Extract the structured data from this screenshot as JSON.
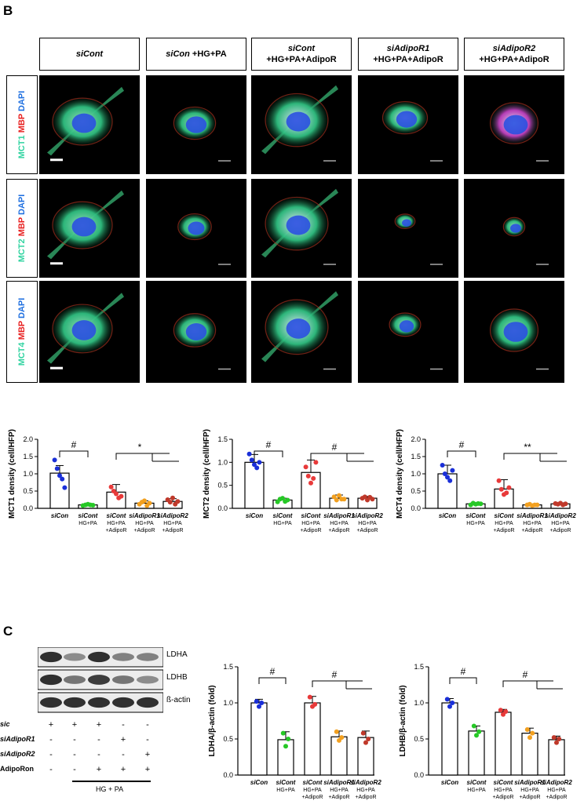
{
  "panels": {
    "b": "B",
    "c": "C"
  },
  "micrograph_headers": [
    {
      "line1_italic": "siCont",
      "line1_plain": "",
      "line2": ""
    },
    {
      "line1_italic": "siCon",
      "line1_plain": "+HG+PA",
      "line2": ""
    },
    {
      "line1_italic": "siCont",
      "line1_plain": "",
      "line2": "+HG+PA+AdipoR"
    },
    {
      "line1_italic": "siAdipoR1",
      "line1_plain": "",
      "line2": "+HG+PA+AdipoR"
    },
    {
      "line1_italic": "siAdipoR2",
      "line1_plain": "",
      "line2": "+HG+PA+AdipoR"
    }
  ],
  "micrograph_rows": [
    {
      "marker": "MCT1",
      "mbp": "MBP",
      "dapi": "DAPI"
    },
    {
      "marker": "MCT2",
      "mbp": "MBP",
      "dapi": "DAPI"
    },
    {
      "marker": "MCT4",
      "mbp": "MBP",
      "dapi": "DAPI"
    }
  ],
  "colors": {
    "green": "#2fd3a0",
    "red": "#e82020",
    "blue": "#2070e0",
    "dot_blue": "#1a2fd8",
    "dot_green": "#26c826",
    "dot_red": "#e83a3a",
    "dot_orange": "#f2a020",
    "dot_darkred": "#c0392b"
  },
  "chart_data": [
    {
      "type": "bar",
      "ylabel": "MCT1 density (cell/HFP)",
      "ylim": [
        0,
        2.0
      ],
      "yticks": [
        "0.0",
        "0.5",
        "1.0",
        "1.5",
        "2.0"
      ],
      "categories": [
        [
          "siCon"
        ],
        [
          "siCont",
          "HG+PA"
        ],
        [
          "siCont",
          "HG+PA",
          "+AdipoR"
        ],
        [
          "siAdipoR1",
          "HG+PA",
          "+AdipoR"
        ],
        [
          "siAdipoR2",
          "HG+PA",
          "+AdipoR"
        ]
      ],
      "values": [
        1.02,
        0.1,
        0.47,
        0.15,
        0.2
      ],
      "errors": [
        0.22,
        0.03,
        0.22,
        0.07,
        0.08
      ],
      "points": [
        [
          1.4,
          1.15,
          0.95,
          0.85,
          0.6
        ],
        [
          0.08,
          0.1,
          0.12,
          0.1,
          0.09
        ],
        [
          0.62,
          0.5,
          0.42,
          0.3,
          0.35
        ],
        [
          0.12,
          0.18,
          0.22,
          0.08,
          0.15
        ],
        [
          0.25,
          0.18,
          0.3,
          0.12,
          0.2
        ]
      ],
      "significance": [
        "#",
        "*"
      ]
    },
    {
      "type": "bar",
      "ylabel": "MCT2 density (cell/HFP)",
      "ylim": [
        0,
        1.5
      ],
      "yticks": [
        "0.0",
        "0.5",
        "1.0",
        "1.5"
      ],
      "categories": [
        [
          "siCon"
        ],
        [
          "siCont",
          "HG+PA"
        ],
        [
          "siCont",
          "HG+PA",
          "+AdipoR"
        ],
        [
          "siAdipoR1",
          "HG+PA",
          "+AdipoR"
        ],
        [
          "siAdipoR2",
          "HG+PA",
          "+AdipoR"
        ]
      ],
      "values": [
        1.0,
        0.18,
        0.78,
        0.22,
        0.22
      ],
      "errors": [
        0.17,
        0.04,
        0.27,
        0.07,
        0.04
      ],
      "points": [
        [
          1.18,
          1.05,
          0.95,
          0.88,
          1.0
        ],
        [
          0.14,
          0.2,
          0.22,
          0.15,
          0.18
        ],
        [
          0.9,
          0.7,
          0.55,
          0.65,
          1.0
        ],
        [
          0.25,
          0.18,
          0.28,
          0.2,
          0.2
        ],
        [
          0.22,
          0.25,
          0.18,
          0.24,
          0.2
        ]
      ],
      "significance": [
        "#",
        "#"
      ]
    },
    {
      "type": "bar",
      "ylabel": "MCT4 density (cell/HFP)",
      "ylim": [
        0,
        2.0
      ],
      "yticks": [
        "0.0",
        "0.5",
        "1.0",
        "1.5",
        "2.0"
      ],
      "categories": [
        [
          "siCon"
        ],
        [
          "siCont",
          "HG+PA"
        ],
        [
          "siCont",
          "HG+PA",
          "+AdipoR"
        ],
        [
          "siAdipoR1",
          "HG+PA",
          "+AdipoR"
        ],
        [
          "siAdipoR2",
          "HG+PA",
          "+AdipoR"
        ]
      ],
      "values": [
        1.0,
        0.13,
        0.56,
        0.1,
        0.13
      ],
      "errors": [
        0.25,
        0.03,
        0.27,
        0.02,
        0.03
      ],
      "points": [
        [
          1.25,
          1.0,
          0.9,
          0.8,
          1.1
        ],
        [
          0.1,
          0.15,
          0.12,
          0.14,
          0.13
        ],
        [
          0.8,
          0.55,
          0.4,
          0.45,
          0.6
        ],
        [
          0.1,
          0.12,
          0.08,
          0.1,
          0.1
        ],
        [
          0.14,
          0.12,
          0.15,
          0.1,
          0.13
        ]
      ],
      "significance": [
        "#",
        "**"
      ]
    },
    {
      "type": "bar",
      "ylabel": "LDHA/β-actin (fold)",
      "ylim": [
        0,
        1.5
      ],
      "yticks": [
        "0.0",
        "0.5",
        "1.0",
        "1.5"
      ],
      "categories": [
        [
          "siCon"
        ],
        [
          "siCont",
          "HG+PA"
        ],
        [
          "siCont",
          "HG+PA",
          "+AdipoR"
        ],
        [
          "siAdipoR1",
          "HG+PA",
          "+AdipoR"
        ],
        [
          "siAdipoR2",
          "HG+PA",
          "+AdipoR"
        ]
      ],
      "values": [
        1.0,
        0.49,
        1.0,
        0.53,
        0.52
      ],
      "errors": [
        0.05,
        0.11,
        0.09,
        0.08,
        0.09
      ],
      "points": [
        [
          1.02,
          0.95,
          1.0
        ],
        [
          0.58,
          0.4,
          0.5
        ],
        [
          1.08,
          0.95,
          0.98
        ],
        [
          0.6,
          0.48,
          0.52
        ],
        [
          0.58,
          0.45,
          0.5
        ]
      ],
      "significance": [
        "#",
        "#"
      ]
    },
    {
      "type": "bar",
      "ylabel": "LDHB/β-actin (fold)",
      "ylim": [
        0,
        1.5
      ],
      "yticks": [
        "0.0",
        "0.5",
        "1.0",
        "1.5"
      ],
      "categories": [
        [
          "siCon"
        ],
        [
          "siCont",
          "HG+PA"
        ],
        [
          "siCont",
          "HG+PA",
          "+AdipoR"
        ],
        [
          "siAdipoR1",
          "HG+PA",
          "+AdipoR"
        ],
        [
          "siAdipoR2",
          "HG+PA",
          "+AdipoR"
        ]
      ],
      "values": [
        1.0,
        0.61,
        0.87,
        0.58,
        0.49
      ],
      "errors": [
        0.06,
        0.07,
        0.04,
        0.07,
        0.05
      ],
      "points": [
        [
          1.05,
          0.95,
          1.0
        ],
        [
          0.68,
          0.55,
          0.6
        ],
        [
          0.9,
          0.84,
          0.88
        ],
        [
          0.63,
          0.52,
          0.58
        ],
        [
          0.52,
          0.45,
          0.5
        ]
      ],
      "significance": [
        "#",
        "#"
      ]
    }
  ],
  "western_blot": {
    "bands": [
      "LDHA",
      "LDHB",
      "ß-actin"
    ],
    "intensity": [
      [
        0.9,
        0.5,
        0.9,
        0.55,
        0.55
      ],
      [
        0.9,
        0.6,
        0.85,
        0.6,
        0.5
      ],
      [
        0.9,
        0.9,
        0.9,
        0.9,
        0.9
      ]
    ],
    "conditions": [
      {
        "label": "sic",
        "values": [
          "+",
          "+",
          "+",
          "-",
          "-"
        ]
      },
      {
        "label": "siAdipoR1",
        "values": [
          "-",
          "-",
          "-",
          "+",
          "-"
        ]
      },
      {
        "label": "siAdipoR2",
        "values": [
          "-",
          "-",
          "-",
          "-",
          "+"
        ]
      },
      {
        "label": "AdipoRon",
        "values": [
          "-",
          "-",
          "+",
          "+",
          "+"
        ]
      }
    ],
    "bottom_label": "HG + PA"
  }
}
